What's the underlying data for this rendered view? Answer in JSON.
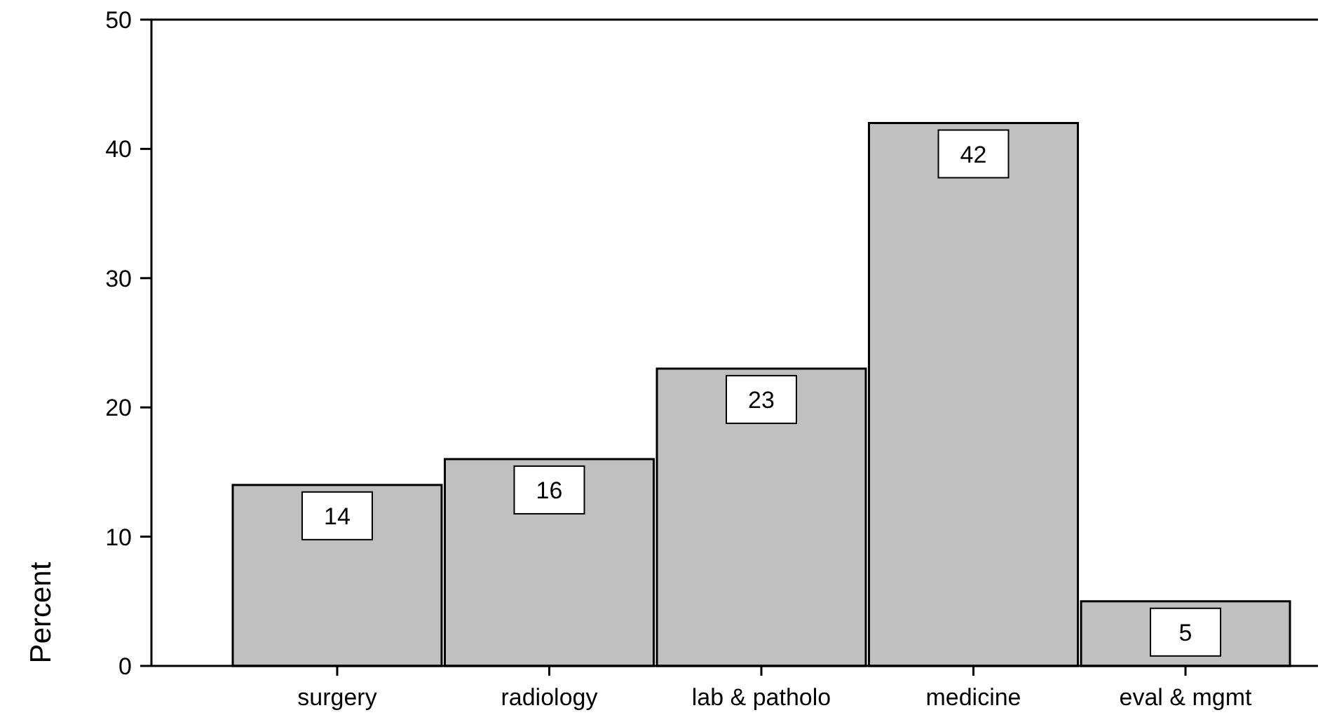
{
  "chart_data": {
    "type": "bar",
    "ylabel": "Percent",
    "categories": [
      "surgery",
      "radiology",
      "lab & patholo",
      "medicine",
      "eval & mgmt"
    ],
    "values": [
      14,
      16,
      23,
      42,
      5
    ],
    "color": "#c0c0c0",
    "ylim": [
      0,
      50
    ],
    "yticks": [
      0,
      10,
      20,
      30,
      40,
      50
    ],
    "data_labels": true,
    "grid": false
  }
}
